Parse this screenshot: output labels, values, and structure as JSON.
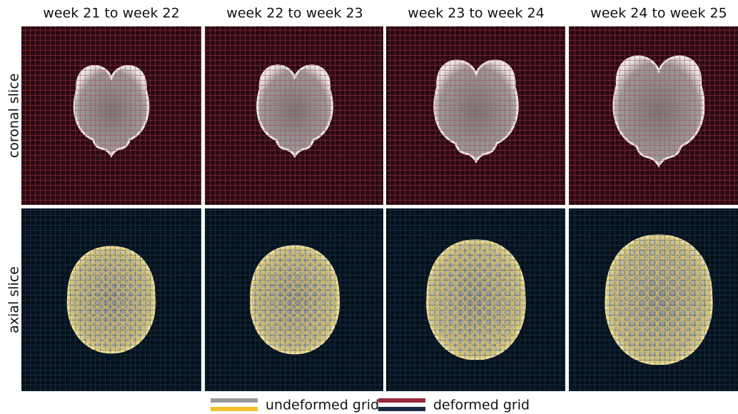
{
  "columns": [
    "week 21 to week 22",
    "week 22 to week 23",
    "week 23 to week 24",
    "week 24 to week 25"
  ],
  "rows": [
    "coronal slice",
    "axial slice"
  ],
  "legend": [
    "undeformed grid",
    "deformed grid"
  ]
}
